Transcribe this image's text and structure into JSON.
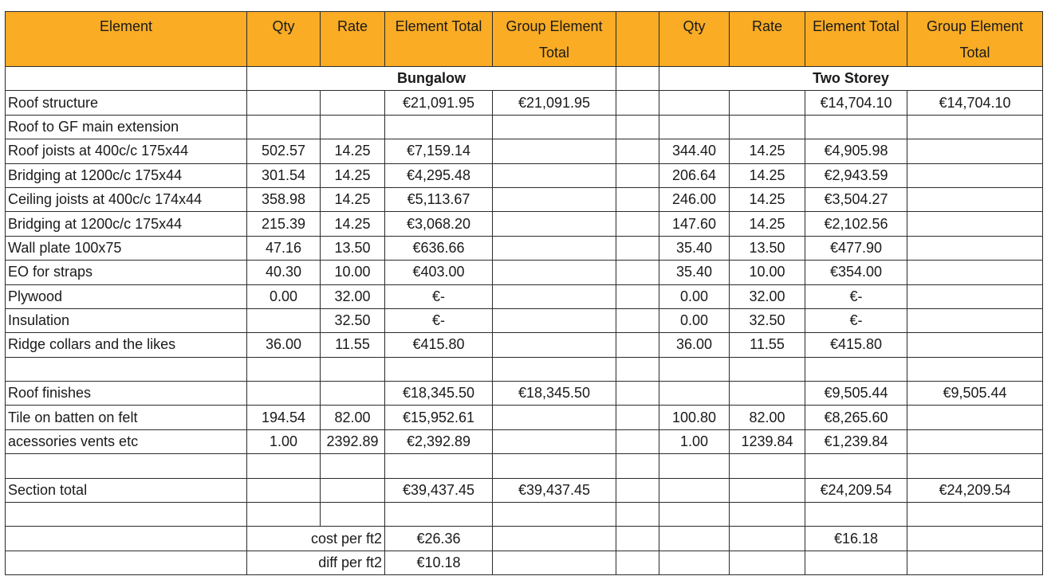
{
  "header": [
    "Element",
    "Qty",
    "Rate",
    "Element Total",
    "Group Element Total",
    "",
    "Qty",
    "Rate",
    "Element Total",
    "Group Element Total"
  ],
  "groups": {
    "left": "Bungalow",
    "right": "Two Storey"
  },
  "rows": [
    [
      "Roof structure",
      "",
      "",
      "€21,091.95",
      "€21,091.95",
      "",
      "",
      "",
      "€14,704.10",
      "€14,704.10"
    ],
    [
      "Roof to GF main extension",
      "",
      "",
      "",
      "",
      "",
      "",
      "",
      "",
      ""
    ],
    [
      "Roof joists at 400c/c 175x44",
      "502.57",
      "14.25",
      "€7,159.14",
      "",
      "",
      "344.40",
      "14.25",
      "€4,905.98",
      ""
    ],
    [
      "Bridging at 1200c/c 175x44",
      "301.54",
      "14.25",
      "€4,295.48",
      "",
      "",
      "206.64",
      "14.25",
      "€2,943.59",
      ""
    ],
    [
      "Ceiling joists at 400c/c 174x44",
      "358.98",
      "14.25",
      "€5,113.67",
      "",
      "",
      "246.00",
      "14.25",
      "€3,504.27",
      ""
    ],
    [
      "Bridging at 1200c/c 175x44",
      "215.39",
      "14.25",
      "€3,068.20",
      "",
      "",
      "147.60",
      "14.25",
      "€2,102.56",
      ""
    ],
    [
      "Wall plate 100x75",
      "47.16",
      "13.50",
      "€636.66",
      "",
      "",
      "35.40",
      "13.50",
      "€477.90",
      ""
    ],
    [
      "EO for straps",
      "40.30",
      "10.00",
      "€403.00",
      "",
      "",
      "35.40",
      "10.00",
      "€354.00",
      ""
    ],
    [
      "Plywood",
      "0.00",
      "32.00",
      "€-",
      "",
      "",
      "0.00",
      "32.00",
      "€-",
      ""
    ],
    [
      "Insulation",
      "",
      "32.50",
      "€-",
      "",
      "",
      "0.00",
      "32.50",
      "€-",
      ""
    ],
    [
      "Ridge collars and the likes",
      "36.00",
      "11.55",
      "€415.80",
      "",
      "",
      "36.00",
      "11.55",
      "€415.80",
      ""
    ],
    [
      "",
      "",
      "",
      "",
      "",
      "",
      "",
      "",
      "",
      ""
    ],
    [
      "Roof finishes",
      "",
      "",
      "€18,345.50",
      "€18,345.50",
      "",
      "",
      "",
      "€9,505.44",
      "€9,505.44"
    ],
    [
      "Tile on batten on felt",
      "194.54",
      "82.00",
      "€15,952.61",
      "",
      "",
      "100.80",
      "82.00",
      "€8,265.60",
      ""
    ],
    [
      "acessories vents etc",
      "1.00",
      "2392.89",
      "€2,392.89",
      "",
      "",
      "1.00",
      "1239.84",
      "€1,239.84",
      ""
    ],
    [
      "",
      "",
      "",
      "",
      "",
      "",
      "",
      "",
      "",
      ""
    ],
    [
      "Section total",
      "",
      "",
      "€39,437.45",
      "€39,437.45",
      "",
      "",
      "",
      "€24,209.54",
      "€24,209.54"
    ],
    [
      "",
      "",
      "",
      "",
      "",
      "",
      "",
      "",
      "",
      ""
    ]
  ],
  "footer": {
    "cost_label": "cost per ft2",
    "cost_left": "€26.36",
    "cost_right": "€16.18",
    "diff_label": "diff per ft2",
    "diff_left": "€10.18"
  }
}
